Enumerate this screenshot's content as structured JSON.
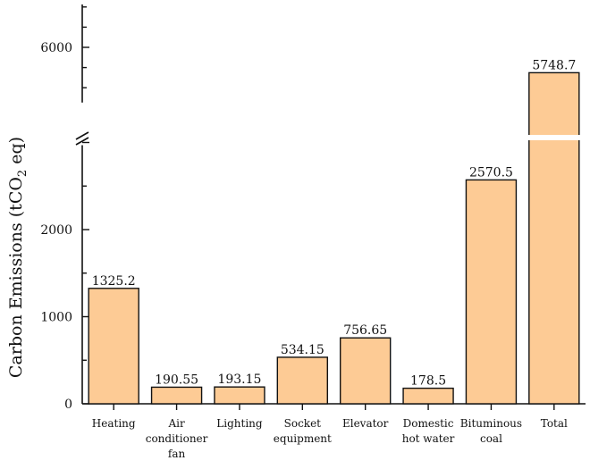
{
  "chart_data": {
    "type": "bar",
    "ylabel": "Carbon Emissions (tCO2 eq)",
    "ylabel_parts": {
      "main": "Carbon Emissions (tCO",
      "sub": "2",
      "tail": " eq)"
    },
    "axis_break": {
      "lower_range": [
        0,
        3000
      ],
      "upper_range": [
        5400,
        6600
      ]
    },
    "yticks": [
      0,
      1000,
      2000,
      6000
    ],
    "categories": [
      [
        "Heating"
      ],
      [
        "Air",
        "conditioner",
        "fan"
      ],
      [
        "Lighting"
      ],
      [
        "Socket",
        "equipment"
      ],
      [
        "Elevator"
      ],
      [
        "Domestic",
        "hot water"
      ],
      [
        "Bituminous",
        "coal"
      ],
      [
        "Total"
      ]
    ],
    "values": [
      1325.2,
      190.55,
      193.15,
      534.15,
      756.65,
      178.5,
      2570.5,
      5748.7
    ],
    "value_labels": [
      "1325.2",
      "190.55",
      "193.15",
      "534.15",
      "756.65",
      "178.5",
      "2570.5",
      "5748.7"
    ],
    "bar_color": "#fdcb95"
  }
}
